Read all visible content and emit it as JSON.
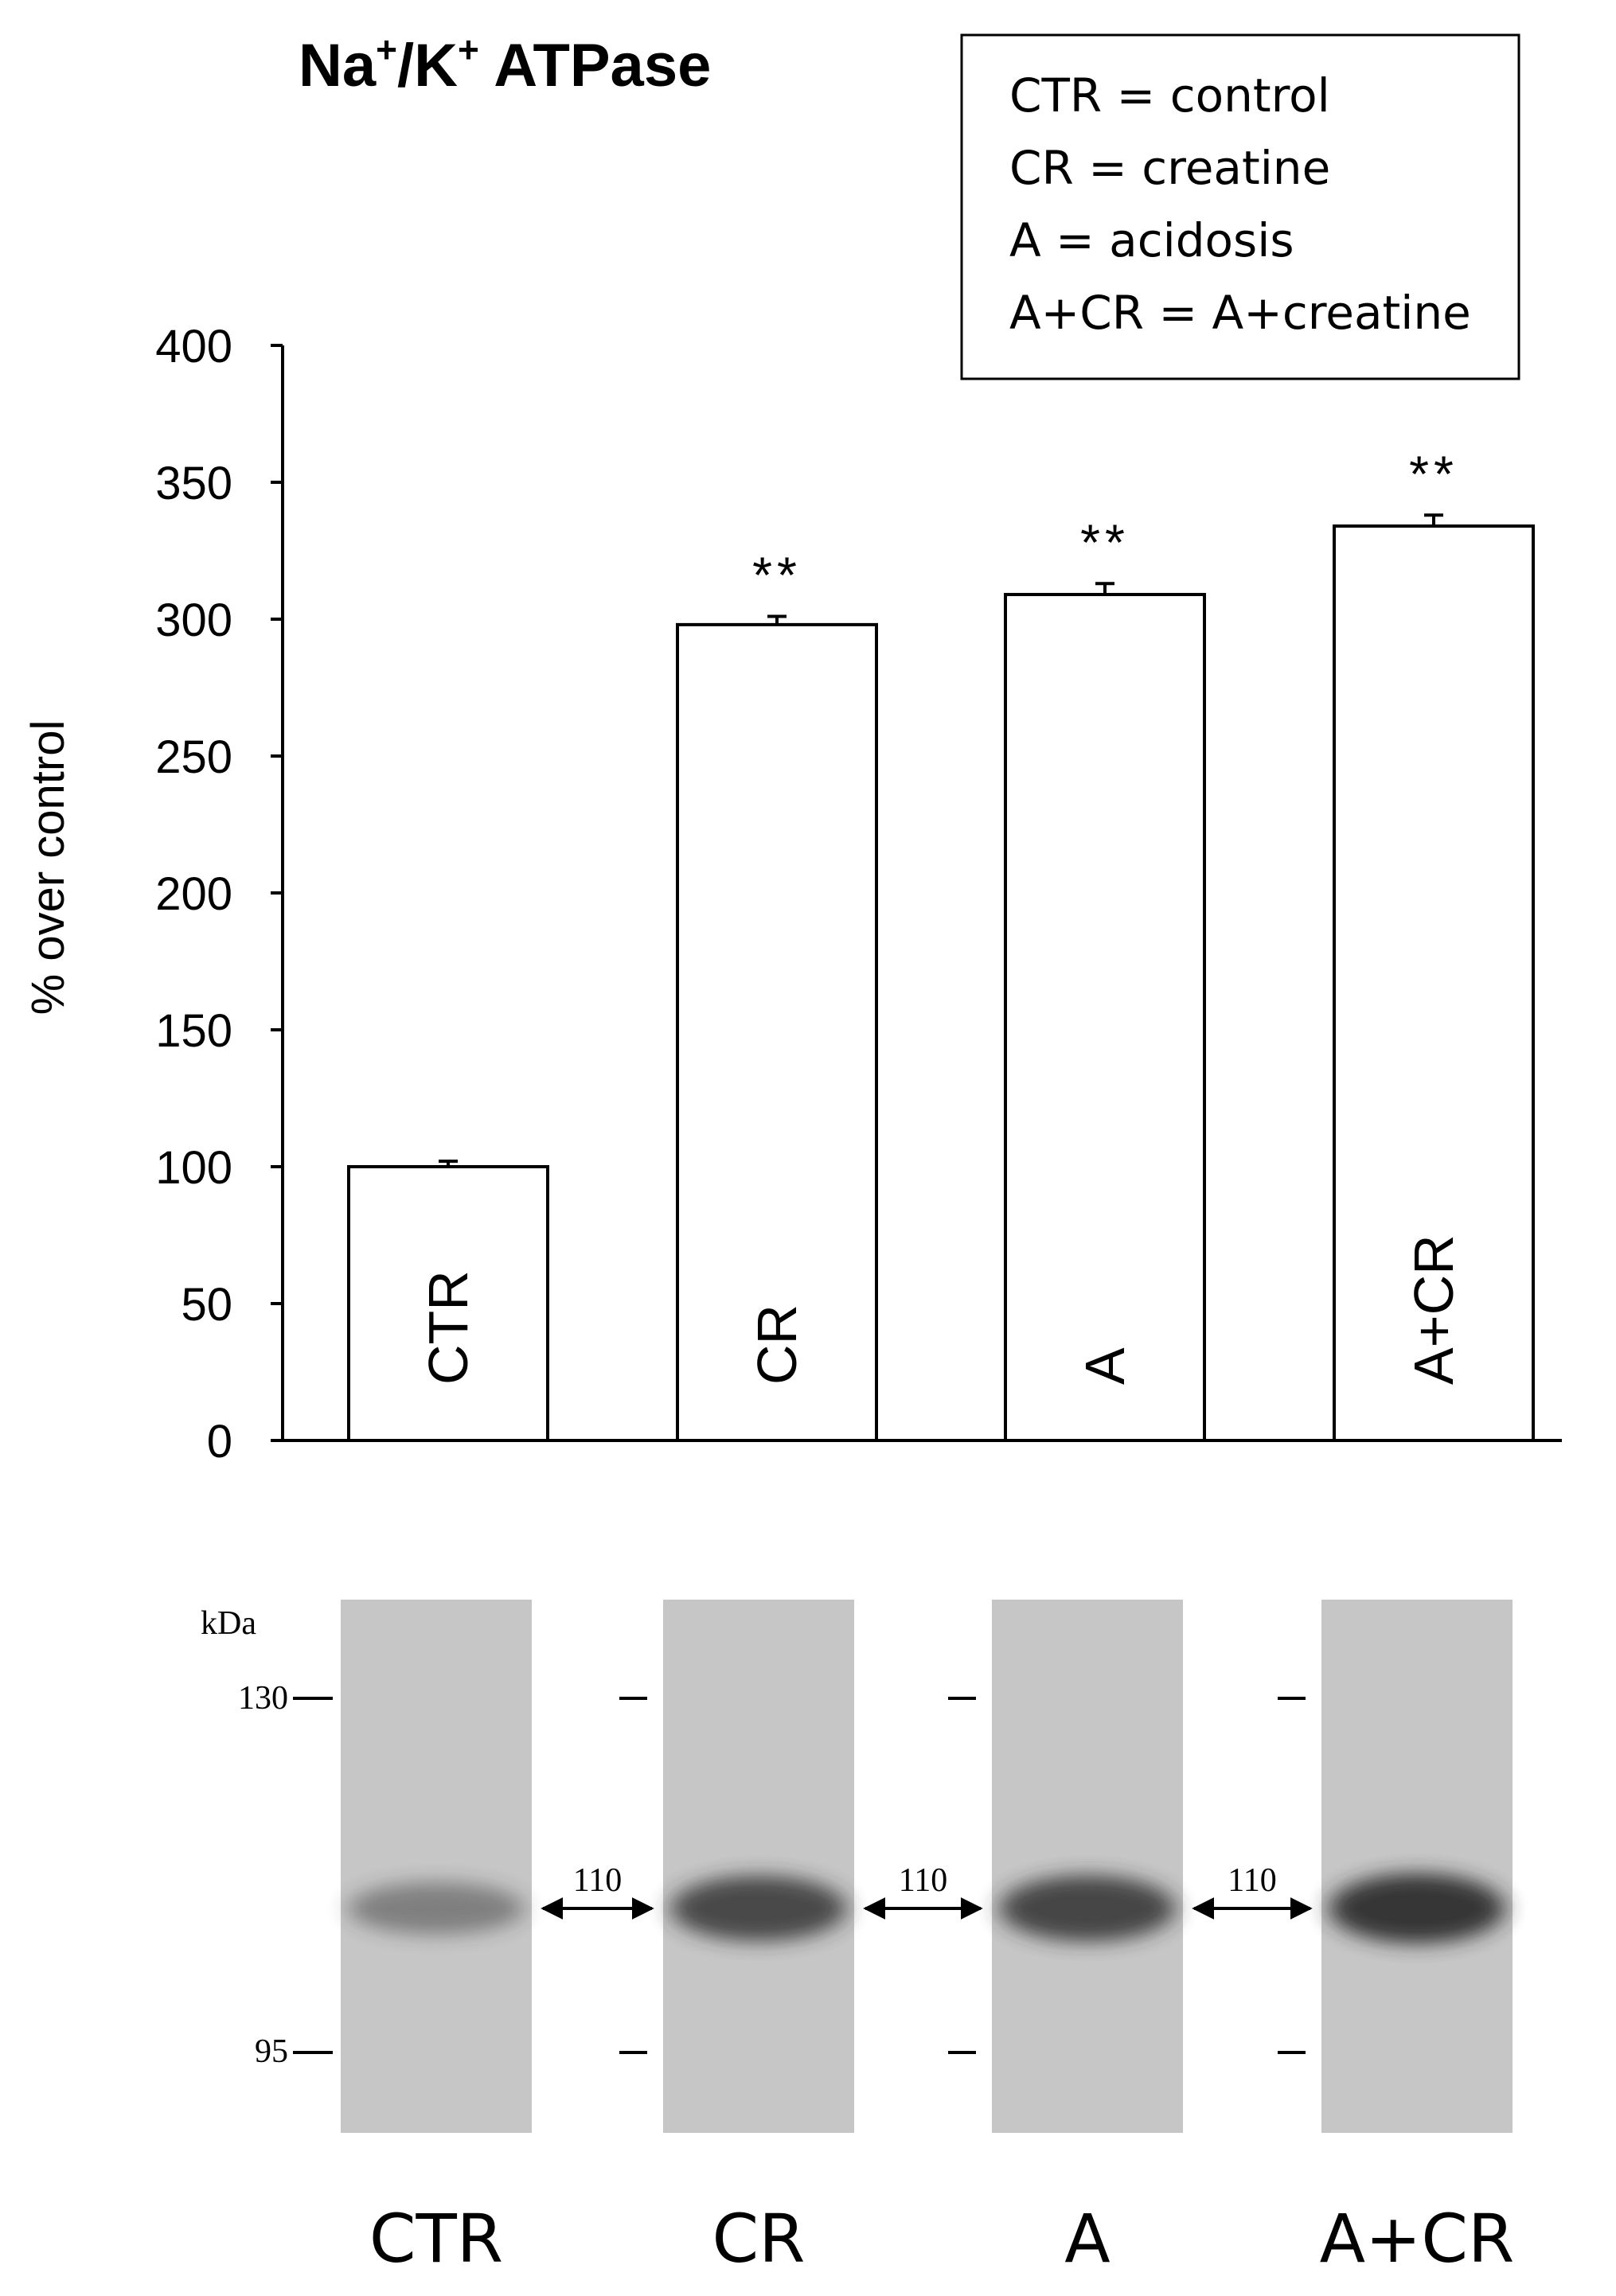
{
  "chart_data": {
    "type": "bar",
    "title_main": "Na",
    "title_sup1": "+",
    "title_sep": "/K",
    "title_sup2": "+",
    "title_tail": " ATPase",
    "ylabel": "% over control",
    "ylim": [
      0,
      400
    ],
    "yticks": [
      0,
      50,
      100,
      150,
      200,
      250,
      300,
      350,
      400
    ],
    "categories": [
      "CTR",
      "CR",
      "A",
      "A+CR"
    ],
    "values": [
      100,
      298,
      309,
      334
    ],
    "errors": [
      2,
      3,
      4,
      4
    ],
    "significance": [
      "",
      "**",
      "**",
      "**"
    ],
    "legend": {
      "position": "top-right",
      "entries": [
        "CTR = control",
        "CR = creatine",
        "A = acidosis",
        "A+CR = A+creatine"
      ]
    }
  },
  "blot": {
    "unit_label": "kDa",
    "marker_high": "130",
    "marker_low": "95",
    "band_label": "110",
    "band_intensity": [
      0.45,
      0.8,
      0.82,
      0.92
    ],
    "lane_labels": [
      "CTR",
      "CR",
      "A",
      "A+CR"
    ]
  },
  "colors": {
    "bar_fill": "#ffffff",
    "axis": "#000000",
    "membrane": "#c6c6c6",
    "band": "#2a2a2a"
  }
}
